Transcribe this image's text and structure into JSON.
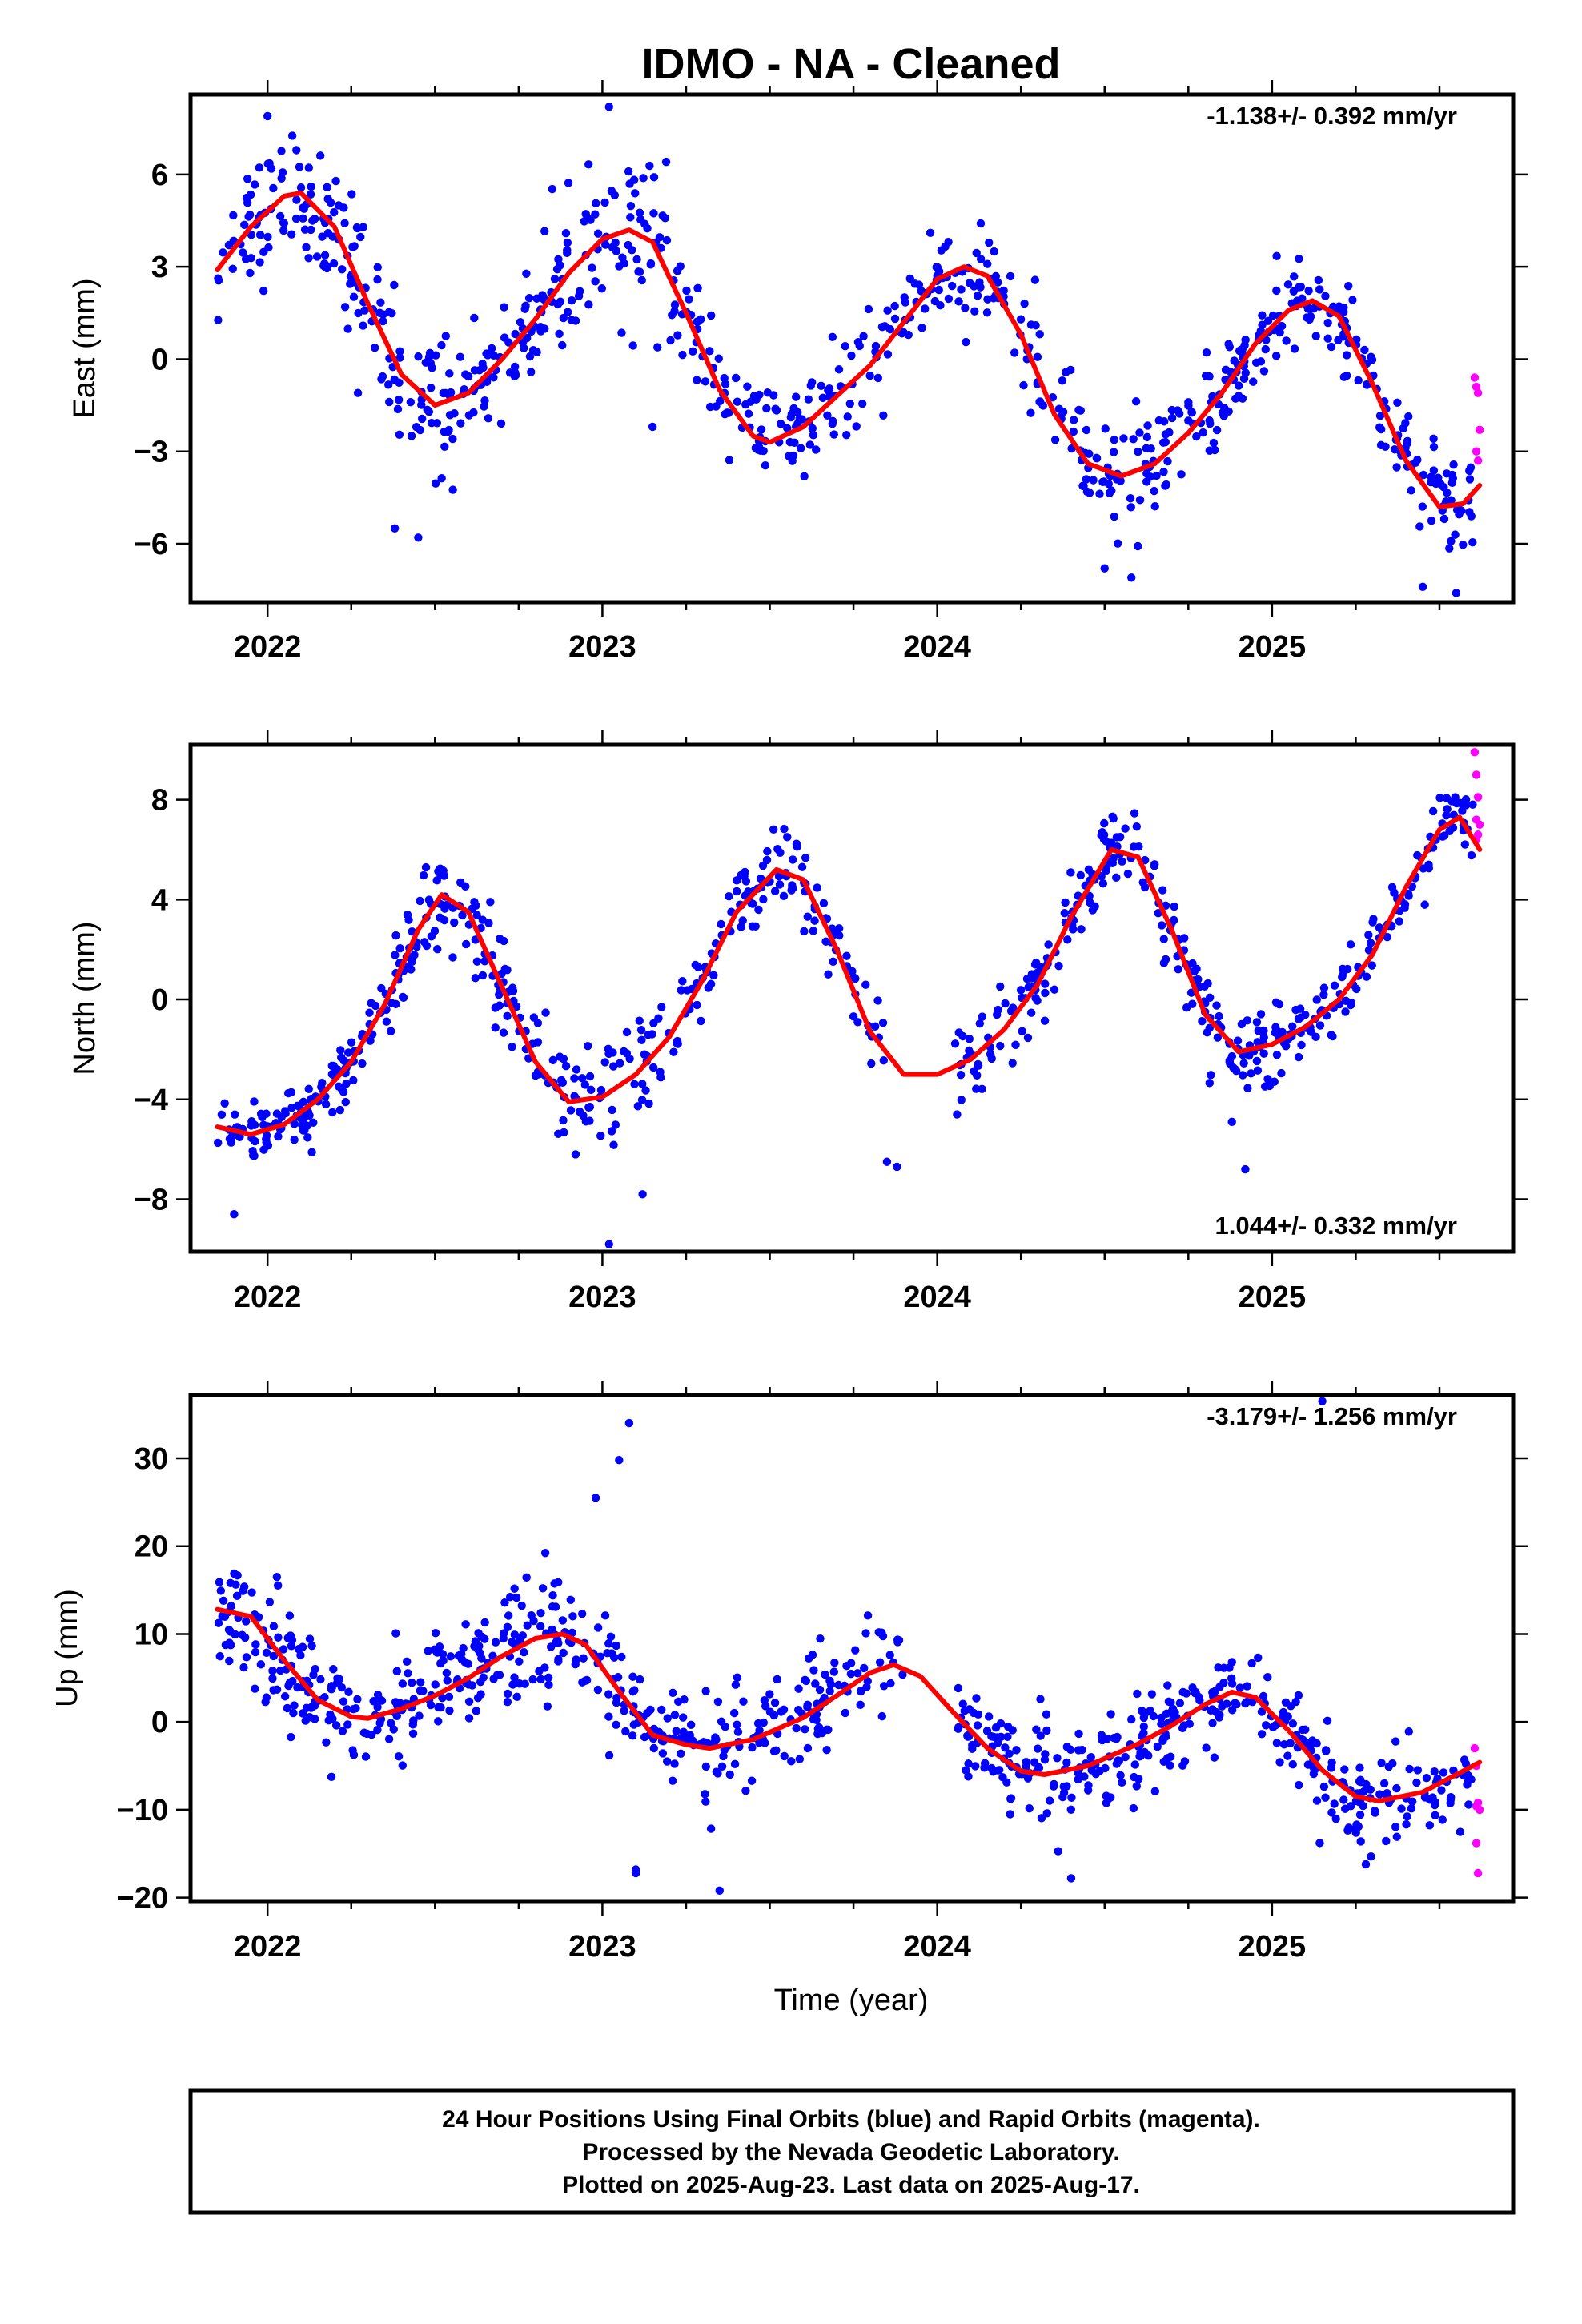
{
  "title": "IDMO  - NA - Cleaned",
  "x_axis_label": "Time (year)",
  "footer": [
    "24 Hour Positions Using Final Orbits (blue) and Rapid Orbits (magenta).",
    "Processed by the Nevada Geodetic Laboratory.",
    "Plotted on 2025-Aug-23. Last data on 2025-Aug-17."
  ],
  "colors": {
    "final_orbits": "#0000ff",
    "rapid_orbits": "#ff00ff",
    "model_fit": "#ff0000"
  },
  "chart_data": [
    {
      "type": "scatter",
      "component": "East",
      "ylabel": "East (mm)",
      "rate_text": "-1.138+/- 0.392 mm/yr",
      "rate_position": "top-right",
      "xlim": [
        2021.77,
        2025.72
      ],
      "ylim": [
        -7.9,
        8.6
      ],
      "yticks": [
        6,
        3,
        0,
        -3,
        -6
      ],
      "ytick_labels": [
        "6",
        "3",
        "0",
        "−3",
        "−6"
      ],
      "xticks": [
        2022,
        2023,
        2024,
        2025
      ],
      "fit_curve": {
        "x": [
          2021.85,
          2021.95,
          2022.05,
          2022.1,
          2022.2,
          2022.3,
          2022.4,
          2022.5,
          2022.6,
          2022.7,
          2022.8,
          2022.9,
          2023.0,
          2023.08,
          2023.15,
          2023.25,
          2023.35,
          2023.45,
          2023.5,
          2023.6,
          2023.7,
          2023.8,
          2023.9,
          2024.0,
          2024.08,
          2024.15,
          2024.25,
          2024.35,
          2024.45,
          2024.55,
          2024.65,
          2024.75,
          2024.85,
          2024.95,
          2025.05,
          2025.12,
          2025.2,
          2025.3,
          2025.4,
          2025.5,
          2025.57,
          2025.62
        ],
        "y": [
          2.9,
          4.3,
          5.3,
          5.4,
          4.3,
          1.8,
          -0.5,
          -1.5,
          -1.1,
          0.0,
          1.3,
          2.8,
          3.9,
          4.2,
          3.8,
          1.5,
          -1.0,
          -2.5,
          -2.7,
          -2.2,
          -1.2,
          -0.2,
          1.2,
          2.6,
          3.0,
          2.7,
          0.8,
          -1.8,
          -3.4,
          -3.8,
          -3.4,
          -2.4,
          -1.1,
          0.5,
          1.6,
          1.9,
          1.4,
          -0.8,
          -3.3,
          -4.8,
          -4.7,
          -4.1
        ]
      },
      "final_series": {
        "segments": [
          {
            "x0": 2021.85,
            "x1": 2022.25,
            "n": 95,
            "spread": 1.2
          },
          {
            "x0": 2022.25,
            "x1": 2022.55,
            "n": 75,
            "spread": 1.3
          },
          {
            "x0": 2022.55,
            "x1": 2022.85,
            "n": 70,
            "spread": 1.0
          },
          {
            "x0": 2022.85,
            "x1": 2023.25,
            "n": 90,
            "spread": 1.5
          },
          {
            "x0": 2023.25,
            "x1": 2023.65,
            "n": 85,
            "spread": 0.9
          },
          {
            "x0": 2023.65,
            "x1": 2023.85,
            "n": 35,
            "spread": 1.0
          },
          {
            "x0": 2023.85,
            "x1": 2024.25,
            "n": 75,
            "spread": 1.0
          },
          {
            "x0": 2024.25,
            "x1": 2024.65,
            "n": 85,
            "spread": 1.1
          },
          {
            "x0": 2024.65,
            "x1": 2024.95,
            "n": 70,
            "spread": 0.9
          },
          {
            "x0": 2024.95,
            "x1": 2025.3,
            "n": 80,
            "spread": 0.8
          },
          {
            "x0": 2025.3,
            "x1": 2025.6,
            "n": 70,
            "spread": 0.9
          }
        ],
        "outliers": {
          "x": [
            2022.0,
            2022.27,
            2022.38,
            2022.45,
            2023.02,
            2023.15,
            2024.5,
            2024.58,
            2025.45,
            2025.55
          ],
          "y": [
            7.9,
            -1.1,
            -5.5,
            -5.8,
            8.2,
            -2.2,
            -6.8,
            -7.1,
            -7.4,
            -7.6
          ]
        }
      },
      "rapid_points": {
        "x": [
          2025.605,
          2025.61,
          2025.615,
          2025.62,
          2025.61,
          2025.615
        ],
        "y": [
          -0.6,
          -0.9,
          -1.1,
          -2.3,
          -3.0,
          -3.3
        ]
      }
    },
    {
      "type": "scatter",
      "component": "North",
      "ylabel": "North (mm)",
      "rate_text": "1.044+/- 0.332 mm/yr",
      "rate_position": "bottom-right",
      "xlim": [
        2021.77,
        2025.72
      ],
      "ylim": [
        -10.1,
        10.2
      ],
      "yticks": [
        8,
        4,
        0,
        -4,
        -8
      ],
      "ytick_labels": [
        "8",
        "4",
        "0",
        "−4",
        "−8"
      ],
      "xticks": [
        2022,
        2023,
        2024,
        2025
      ],
      "fit_curve": {
        "x": [
          2021.85,
          2021.95,
          2022.05,
          2022.15,
          2022.25,
          2022.35,
          2022.45,
          2022.52,
          2022.6,
          2022.7,
          2022.8,
          2022.9,
          2023.0,
          2023.1,
          2023.2,
          2023.3,
          2023.4,
          2023.52,
          2023.6,
          2023.7,
          2023.8,
          2023.9,
          2024.0,
          2024.1,
          2024.2,
          2024.3,
          2024.4,
          2024.52,
          2024.6,
          2024.7,
          2024.8,
          2024.9,
          2025.0,
          2025.1,
          2025.2,
          2025.3,
          2025.4,
          2025.5,
          2025.56,
          2025.62
        ],
        "y": [
          -5.1,
          -5.4,
          -5.0,
          -4.0,
          -2.5,
          -0.2,
          2.8,
          4.2,
          3.5,
          0.5,
          -2.5,
          -4.1,
          -3.9,
          -3.0,
          -1.5,
          0.8,
          3.5,
          5.2,
          4.8,
          2.0,
          -1.3,
          -3.0,
          -3.0,
          -2.4,
          -1.2,
          0.6,
          3.3,
          6.0,
          5.7,
          2.8,
          -0.6,
          -2.1,
          -1.8,
          -1.1,
          0.0,
          1.8,
          4.5,
          6.8,
          7.3,
          6.0
        ]
      },
      "final_series": {
        "segments": [
          {
            "x0": 2021.85,
            "x1": 2022.25,
            "n": 105,
            "spread": 0.8
          },
          {
            "x0": 2022.25,
            "x1": 2022.6,
            "n": 80,
            "spread": 1.0
          },
          {
            "x0": 2022.6,
            "x1": 2023.2,
            "n": 120,
            "spread": 1.3
          },
          {
            "x0": 2023.2,
            "x1": 2023.7,
            "n": 100,
            "spread": 0.9
          },
          {
            "x0": 2023.7,
            "x1": 2023.85,
            "n": 20,
            "spread": 0.9
          },
          {
            "x0": 2024.05,
            "x1": 2024.4,
            "n": 70,
            "spread": 1.0
          },
          {
            "x0": 2024.4,
            "x1": 2024.8,
            "n": 90,
            "spread": 0.9
          },
          {
            "x0": 2024.8,
            "x1": 2025.2,
            "n": 90,
            "spread": 0.9
          },
          {
            "x0": 2025.2,
            "x1": 2025.6,
            "n": 85,
            "spread": 0.8
          }
        ],
        "outliers": {
          "x": [
            2021.9,
            2022.92,
            2023.02,
            2023.12,
            2023.85,
            2023.88,
            2024.92,
            2024.88
          ],
          "y": [
            -8.6,
            -6.2,
            -9.8,
            -7.8,
            -6.5,
            -6.7,
            -6.8,
            -4.9
          ]
        }
      },
      "rapid_points": {
        "x": [
          2025.605,
          2025.61,
          2025.615,
          2025.61,
          2025.62,
          2025.615,
          2025.61
        ],
        "y": [
          9.9,
          9.0,
          8.1,
          7.2,
          7.0,
          6.6,
          6.4
        ]
      }
    },
    {
      "type": "scatter",
      "component": "Up",
      "ylabel": "Up (mm)",
      "rate_text": "-3.179+/- 1.256 mm/yr",
      "rate_position": "top-right",
      "xlim": [
        2021.77,
        2025.72
      ],
      "ylim": [
        -20.4,
        37.2
      ],
      "yticks": [
        30,
        20,
        10,
        0,
        -10,
        -20
      ],
      "ytick_labels": [
        "30",
        "20",
        "10",
        "0",
        "−10",
        "−20"
      ],
      "xticks": [
        2022,
        2023,
        2024,
        2025
      ],
      "fit_curve": {
        "x": [
          2021.85,
          2021.95,
          2022.05,
          2022.15,
          2022.25,
          2022.3,
          2022.4,
          2022.5,
          2022.6,
          2022.7,
          2022.8,
          2022.88,
          2022.95,
          2023.05,
          2023.15,
          2023.25,
          2023.32,
          2023.45,
          2023.6,
          2023.7,
          2023.8,
          2023.87,
          2023.95,
          2024.05,
          2024.15,
          2024.25,
          2024.32,
          2024.45,
          2024.6,
          2024.7,
          2024.8,
          2024.88,
          2024.95,
          2025.05,
          2025.15,
          2025.25,
          2025.32,
          2025.45,
          2025.55,
          2025.62
        ],
        "y": [
          12.8,
          12.0,
          7.0,
          2.5,
          0.6,
          0.4,
          1.5,
          3.0,
          5.0,
          7.5,
          9.5,
          10.0,
          8.8,
          3.5,
          -1.5,
          -2.6,
          -3.0,
          -2.0,
          0.5,
          3.0,
          5.6,
          6.5,
          5.2,
          1.0,
          -3.0,
          -5.6,
          -6.0,
          -5.0,
          -2.5,
          -0.4,
          2.0,
          3.4,
          2.8,
          -1.0,
          -5.5,
          -8.5,
          -9.0,
          -8.0,
          -6.0,
          -4.6
        ]
      },
      "final_series": {
        "segments": [
          {
            "x0": 2021.85,
            "x1": 2022.05,
            "n": 55,
            "spread": 3.8
          },
          {
            "x0": 2022.05,
            "x1": 2022.6,
            "n": 140,
            "spread": 3.8
          },
          {
            "x0": 2022.6,
            "x1": 2023.05,
            "n": 120,
            "spread": 4.5
          },
          {
            "x0": 2023.05,
            "x1": 2023.7,
            "n": 150,
            "spread": 3.6
          },
          {
            "x0": 2023.7,
            "x1": 2023.9,
            "n": 30,
            "spread": 3.0
          },
          {
            "x0": 2024.05,
            "x1": 2024.5,
            "n": 110,
            "spread": 3.2
          },
          {
            "x0": 2024.5,
            "x1": 2025.0,
            "n": 120,
            "spread": 3.2
          },
          {
            "x0": 2025.0,
            "x1": 2025.6,
            "n": 140,
            "spread": 3.0
          }
        ],
        "outliers": {
          "x": [
            2022.98,
            2023.05,
            2023.08,
            2023.1,
            2023.1,
            2023.35,
            2024.4,
            2025.15,
            2025.28
          ],
          "y": [
            25.5,
            29.8,
            34.0,
            -16.8,
            -17.2,
            -19.2,
            -17.8,
            36.5,
            -16.2
          ]
        }
      },
      "rapid_points": {
        "x": [
          2025.605,
          2025.61,
          2025.615,
          2025.61,
          2025.62,
          2025.61,
          2025.615
        ],
        "y": [
          -3.0,
          -5.0,
          -9.2,
          -9.6,
          -10.0,
          -13.8,
          -17.2
        ]
      }
    }
  ]
}
